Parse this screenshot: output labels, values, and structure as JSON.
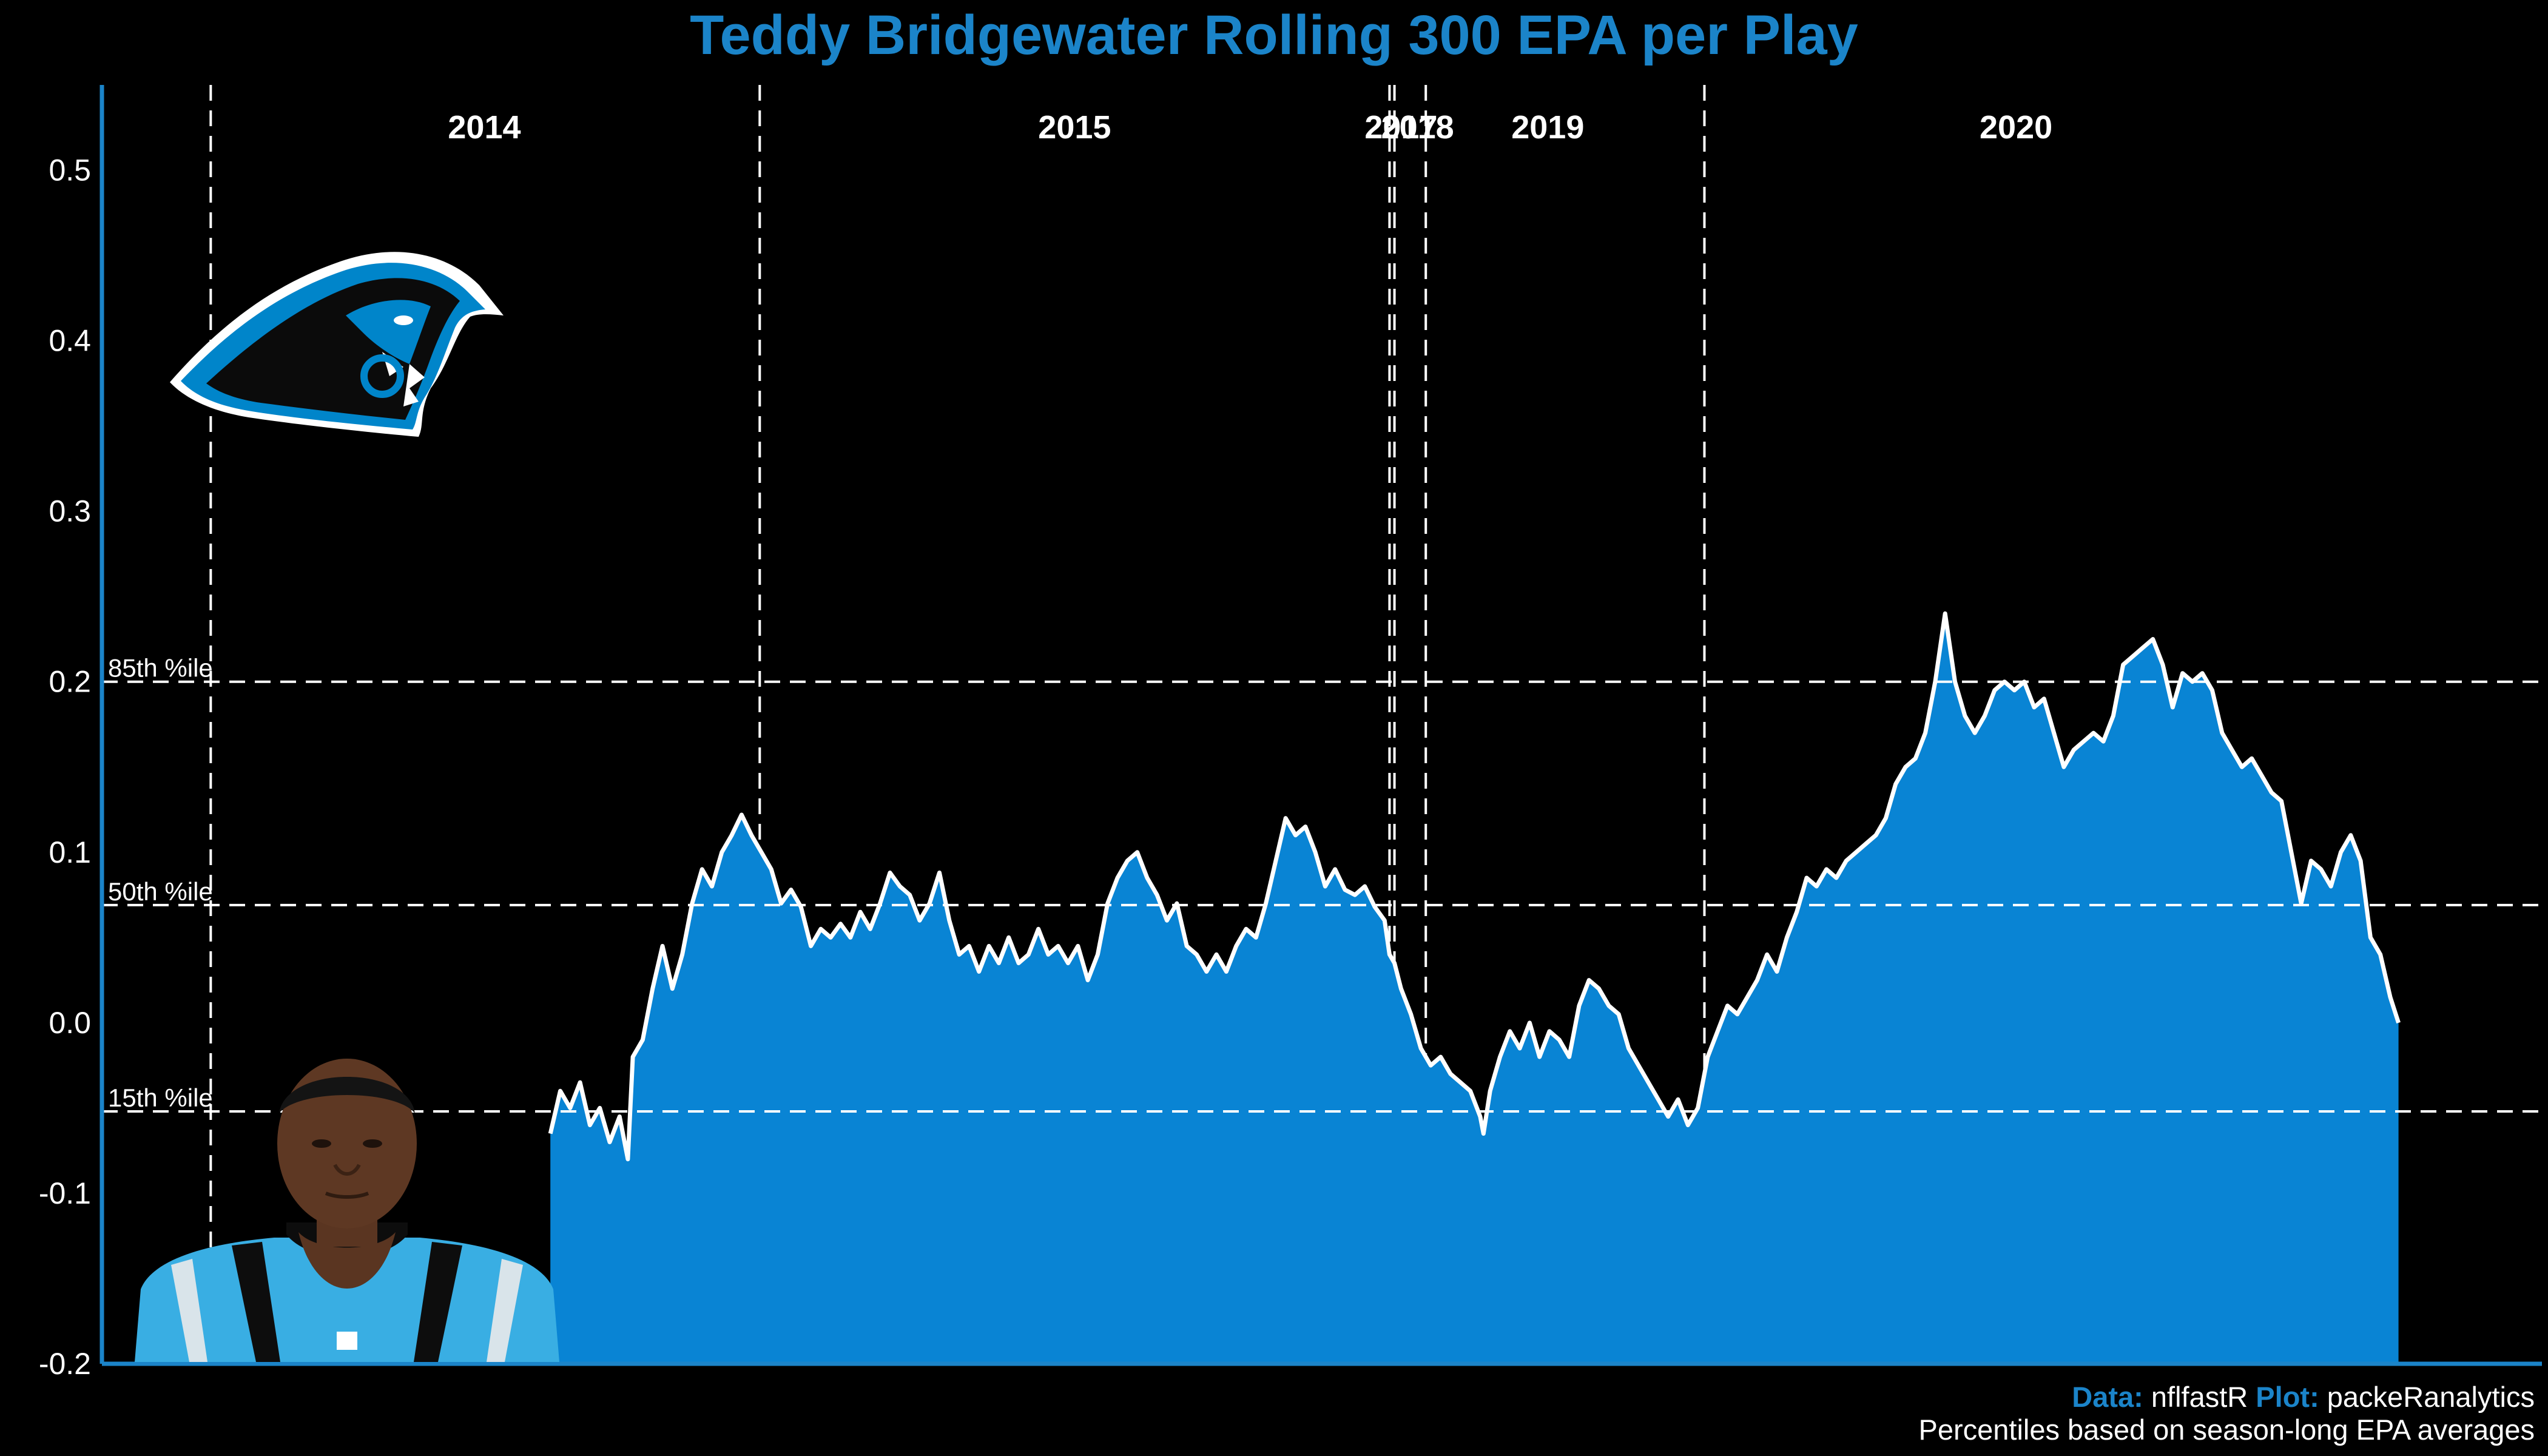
{
  "title": "Teddy Bridgewater Rolling 300 EPA per Play",
  "footer": {
    "data_label": "Data:",
    "data_source": "nflfastR",
    "plot_label": "Plot:",
    "plot_author": "packeRanalytics",
    "note": "Percentiles based on season-long EPA averages"
  },
  "images": {
    "logo": "carolina-panthers-logo",
    "player": "teddy-bridgewater-headshot"
  },
  "colors": {
    "background": "#000000",
    "accent": "#1b84c9",
    "area": "#0984d4",
    "line": "#ffffff"
  },
  "chart_data": {
    "type": "area",
    "title": "Teddy Bridgewater Rolling 300 EPA per Play",
    "xlabel": "",
    "ylabel": "",
    "xlim": [
      0,
      1480
    ],
    "ylim": [
      -0.2,
      0.55
    ],
    "yticks": [
      -0.2,
      -0.1,
      0.0,
      0.1,
      0.2,
      0.3,
      0.4,
      0.5
    ],
    "ytick_labels": [
      "-0.2",
      "-0.1",
      "0.0",
      "0.1",
      "0.2",
      "0.3",
      "0.4",
      "0.5"
    ],
    "grid": false,
    "percentile_lines": [
      {
        "label": "85th %ile",
        "y": 0.2
      },
      {
        "label": "50th %ile",
        "y": 0.069
      },
      {
        "label": "15th %ile",
        "y": -0.052
      }
    ],
    "season_boundaries": [
      66,
      399,
      781,
      784,
      803,
      972
    ],
    "seasons": [
      {
        "label": "2014",
        "x": 232
      },
      {
        "label": "2015",
        "x": 590
      },
      {
        "label": "2017",
        "x": 788
      },
      {
        "label": "2018",
        "x": 798
      },
      {
        "label": "2019",
        "x": 877
      },
      {
        "label": "2020",
        "x": 1161
      }
    ],
    "series": [
      {
        "points": [
          [
            272,
            -0.065
          ],
          [
            278,
            -0.04
          ],
          [
            284,
            -0.05
          ],
          [
            290,
            -0.035
          ],
          [
            296,
            -0.06
          ],
          [
            302,
            -0.05
          ],
          [
            308,
            -0.07
          ],
          [
            314,
            -0.055
          ],
          [
            319,
            -0.08
          ],
          [
            322,
            -0.02
          ],
          [
            328,
            -0.01
          ],
          [
            334,
            0.02
          ],
          [
            340,
            0.045
          ],
          [
            346,
            0.02
          ],
          [
            352,
            0.04
          ],
          [
            358,
            0.07
          ],
          [
            364,
            0.09
          ],
          [
            370,
            0.08
          ],
          [
            376,
            0.1
          ],
          [
            382,
            0.11
          ],
          [
            388,
            0.122
          ],
          [
            394,
            0.11
          ],
          [
            400,
            0.1
          ],
          [
            406,
            0.09
          ],
          [
            412,
            0.07
          ],
          [
            418,
            0.078
          ],
          [
            424,
            0.068
          ],
          [
            430,
            0.045
          ],
          [
            436,
            0.055
          ],
          [
            442,
            0.05
          ],
          [
            448,
            0.058
          ],
          [
            454,
            0.05
          ],
          [
            460,
            0.065
          ],
          [
            466,
            0.055
          ],
          [
            472,
            0.07
          ],
          [
            478,
            0.088
          ],
          [
            484,
            0.08
          ],
          [
            490,
            0.075
          ],
          [
            496,
            0.06
          ],
          [
            502,
            0.07
          ],
          [
            508,
            0.088
          ],
          [
            514,
            0.06
          ],
          [
            520,
            0.04
          ],
          [
            526,
            0.045
          ],
          [
            532,
            0.03
          ],
          [
            538,
            0.045
          ],
          [
            544,
            0.035
          ],
          [
            550,
            0.05
          ],
          [
            556,
            0.035
          ],
          [
            562,
            0.04
          ],
          [
            568,
            0.055
          ],
          [
            574,
            0.04
          ],
          [
            580,
            0.045
          ],
          [
            586,
            0.035
          ],
          [
            592,
            0.045
          ],
          [
            598,
            0.025
          ],
          [
            604,
            0.04
          ],
          [
            610,
            0.07
          ],
          [
            616,
            0.085
          ],
          [
            622,
            0.095
          ],
          [
            628,
            0.1
          ],
          [
            634,
            0.085
          ],
          [
            640,
            0.075
          ],
          [
            646,
            0.06
          ],
          [
            652,
            0.07
          ],
          [
            658,
            0.045
          ],
          [
            664,
            0.04
          ],
          [
            670,
            0.03
          ],
          [
            676,
            0.04
          ],
          [
            682,
            0.03
          ],
          [
            688,
            0.045
          ],
          [
            694,
            0.055
          ],
          [
            700,
            0.05
          ],
          [
            706,
            0.07
          ],
          [
            712,
            0.095
          ],
          [
            718,
            0.12
          ],
          [
            724,
            0.11
          ],
          [
            730,
            0.115
          ],
          [
            736,
            0.1
          ],
          [
            742,
            0.08
          ],
          [
            748,
            0.09
          ],
          [
            754,
            0.078
          ],
          [
            760,
            0.075
          ],
          [
            766,
            0.08
          ],
          [
            772,
            0.068
          ],
          [
            778,
            0.06
          ],
          [
            781,
            0.04
          ],
          [
            784,
            0.035
          ],
          [
            788,
            0.02
          ],
          [
            794,
            0.005
          ],
          [
            800,
            -0.015
          ],
          [
            806,
            -0.025
          ],
          [
            812,
            -0.02
          ],
          [
            818,
            -0.03
          ],
          [
            824,
            -0.035
          ],
          [
            830,
            -0.04
          ],
          [
            836,
            -0.055
          ],
          [
            838,
            -0.065
          ],
          [
            842,
            -0.04
          ],
          [
            848,
            -0.02
          ],
          [
            854,
            -0.005
          ],
          [
            860,
            -0.015
          ],
          [
            866,
            0.0
          ],
          [
            872,
            -0.02
          ],
          [
            878,
            -0.005
          ],
          [
            884,
            -0.01
          ],
          [
            890,
            -0.02
          ],
          [
            896,
            0.01
          ],
          [
            902,
            0.025
          ],
          [
            908,
            0.02
          ],
          [
            914,
            0.01
          ],
          [
            920,
            0.005
          ],
          [
            926,
            -0.015
          ],
          [
            932,
            -0.025
          ],
          [
            938,
            -0.035
          ],
          [
            944,
            -0.045
          ],
          [
            950,
            -0.055
          ],
          [
            956,
            -0.045
          ],
          [
            962,
            -0.06
          ],
          [
            968,
            -0.05
          ],
          [
            974,
            -0.02
          ],
          [
            980,
            -0.005
          ],
          [
            986,
            0.01
          ],
          [
            992,
            0.005
          ],
          [
            998,
            0.015
          ],
          [
            1004,
            0.025
          ],
          [
            1010,
            0.04
          ],
          [
            1016,
            0.03
          ],
          [
            1022,
            0.05
          ],
          [
            1028,
            0.065
          ],
          [
            1034,
            0.085
          ],
          [
            1040,
            0.08
          ],
          [
            1046,
            0.09
          ],
          [
            1052,
            0.085
          ],
          [
            1058,
            0.095
          ],
          [
            1064,
            0.1
          ],
          [
            1070,
            0.105
          ],
          [
            1076,
            0.11
          ],
          [
            1082,
            0.12
          ],
          [
            1088,
            0.14
          ],
          [
            1094,
            0.15
          ],
          [
            1100,
            0.155
          ],
          [
            1106,
            0.17
          ],
          [
            1112,
            0.2
          ],
          [
            1118,
            0.24
          ],
          [
            1124,
            0.2
          ],
          [
            1130,
            0.18
          ],
          [
            1136,
            0.17
          ],
          [
            1142,
            0.18
          ],
          [
            1148,
            0.195
          ],
          [
            1154,
            0.2
          ],
          [
            1160,
            0.195
          ],
          [
            1166,
            0.2
          ],
          [
            1172,
            0.185
          ],
          [
            1178,
            0.19
          ],
          [
            1184,
            0.17
          ],
          [
            1190,
            0.15
          ],
          [
            1196,
            0.16
          ],
          [
            1202,
            0.165
          ],
          [
            1208,
            0.17
          ],
          [
            1214,
            0.165
          ],
          [
            1220,
            0.18
          ],
          [
            1226,
            0.21
          ],
          [
            1232,
            0.215
          ],
          [
            1238,
            0.22
          ],
          [
            1244,
            0.225
          ],
          [
            1250,
            0.21
          ],
          [
            1256,
            0.185
          ],
          [
            1262,
            0.205
          ],
          [
            1268,
            0.2
          ],
          [
            1274,
            0.205
          ],
          [
            1280,
            0.195
          ],
          [
            1286,
            0.17
          ],
          [
            1292,
            0.16
          ],
          [
            1298,
            0.15
          ],
          [
            1304,
            0.155
          ],
          [
            1310,
            0.145
          ],
          [
            1316,
            0.135
          ],
          [
            1322,
            0.13
          ],
          [
            1328,
            0.1
          ],
          [
            1334,
            0.07
          ],
          [
            1340,
            0.095
          ],
          [
            1346,
            0.09
          ],
          [
            1352,
            0.08
          ],
          [
            1358,
            0.1
          ],
          [
            1364,
            0.11
          ],
          [
            1370,
            0.095
          ],
          [
            1376,
            0.05
          ],
          [
            1382,
            0.04
          ],
          [
            1388,
            0.015
          ],
          [
            1393,
            0.0
          ]
        ]
      }
    ]
  }
}
